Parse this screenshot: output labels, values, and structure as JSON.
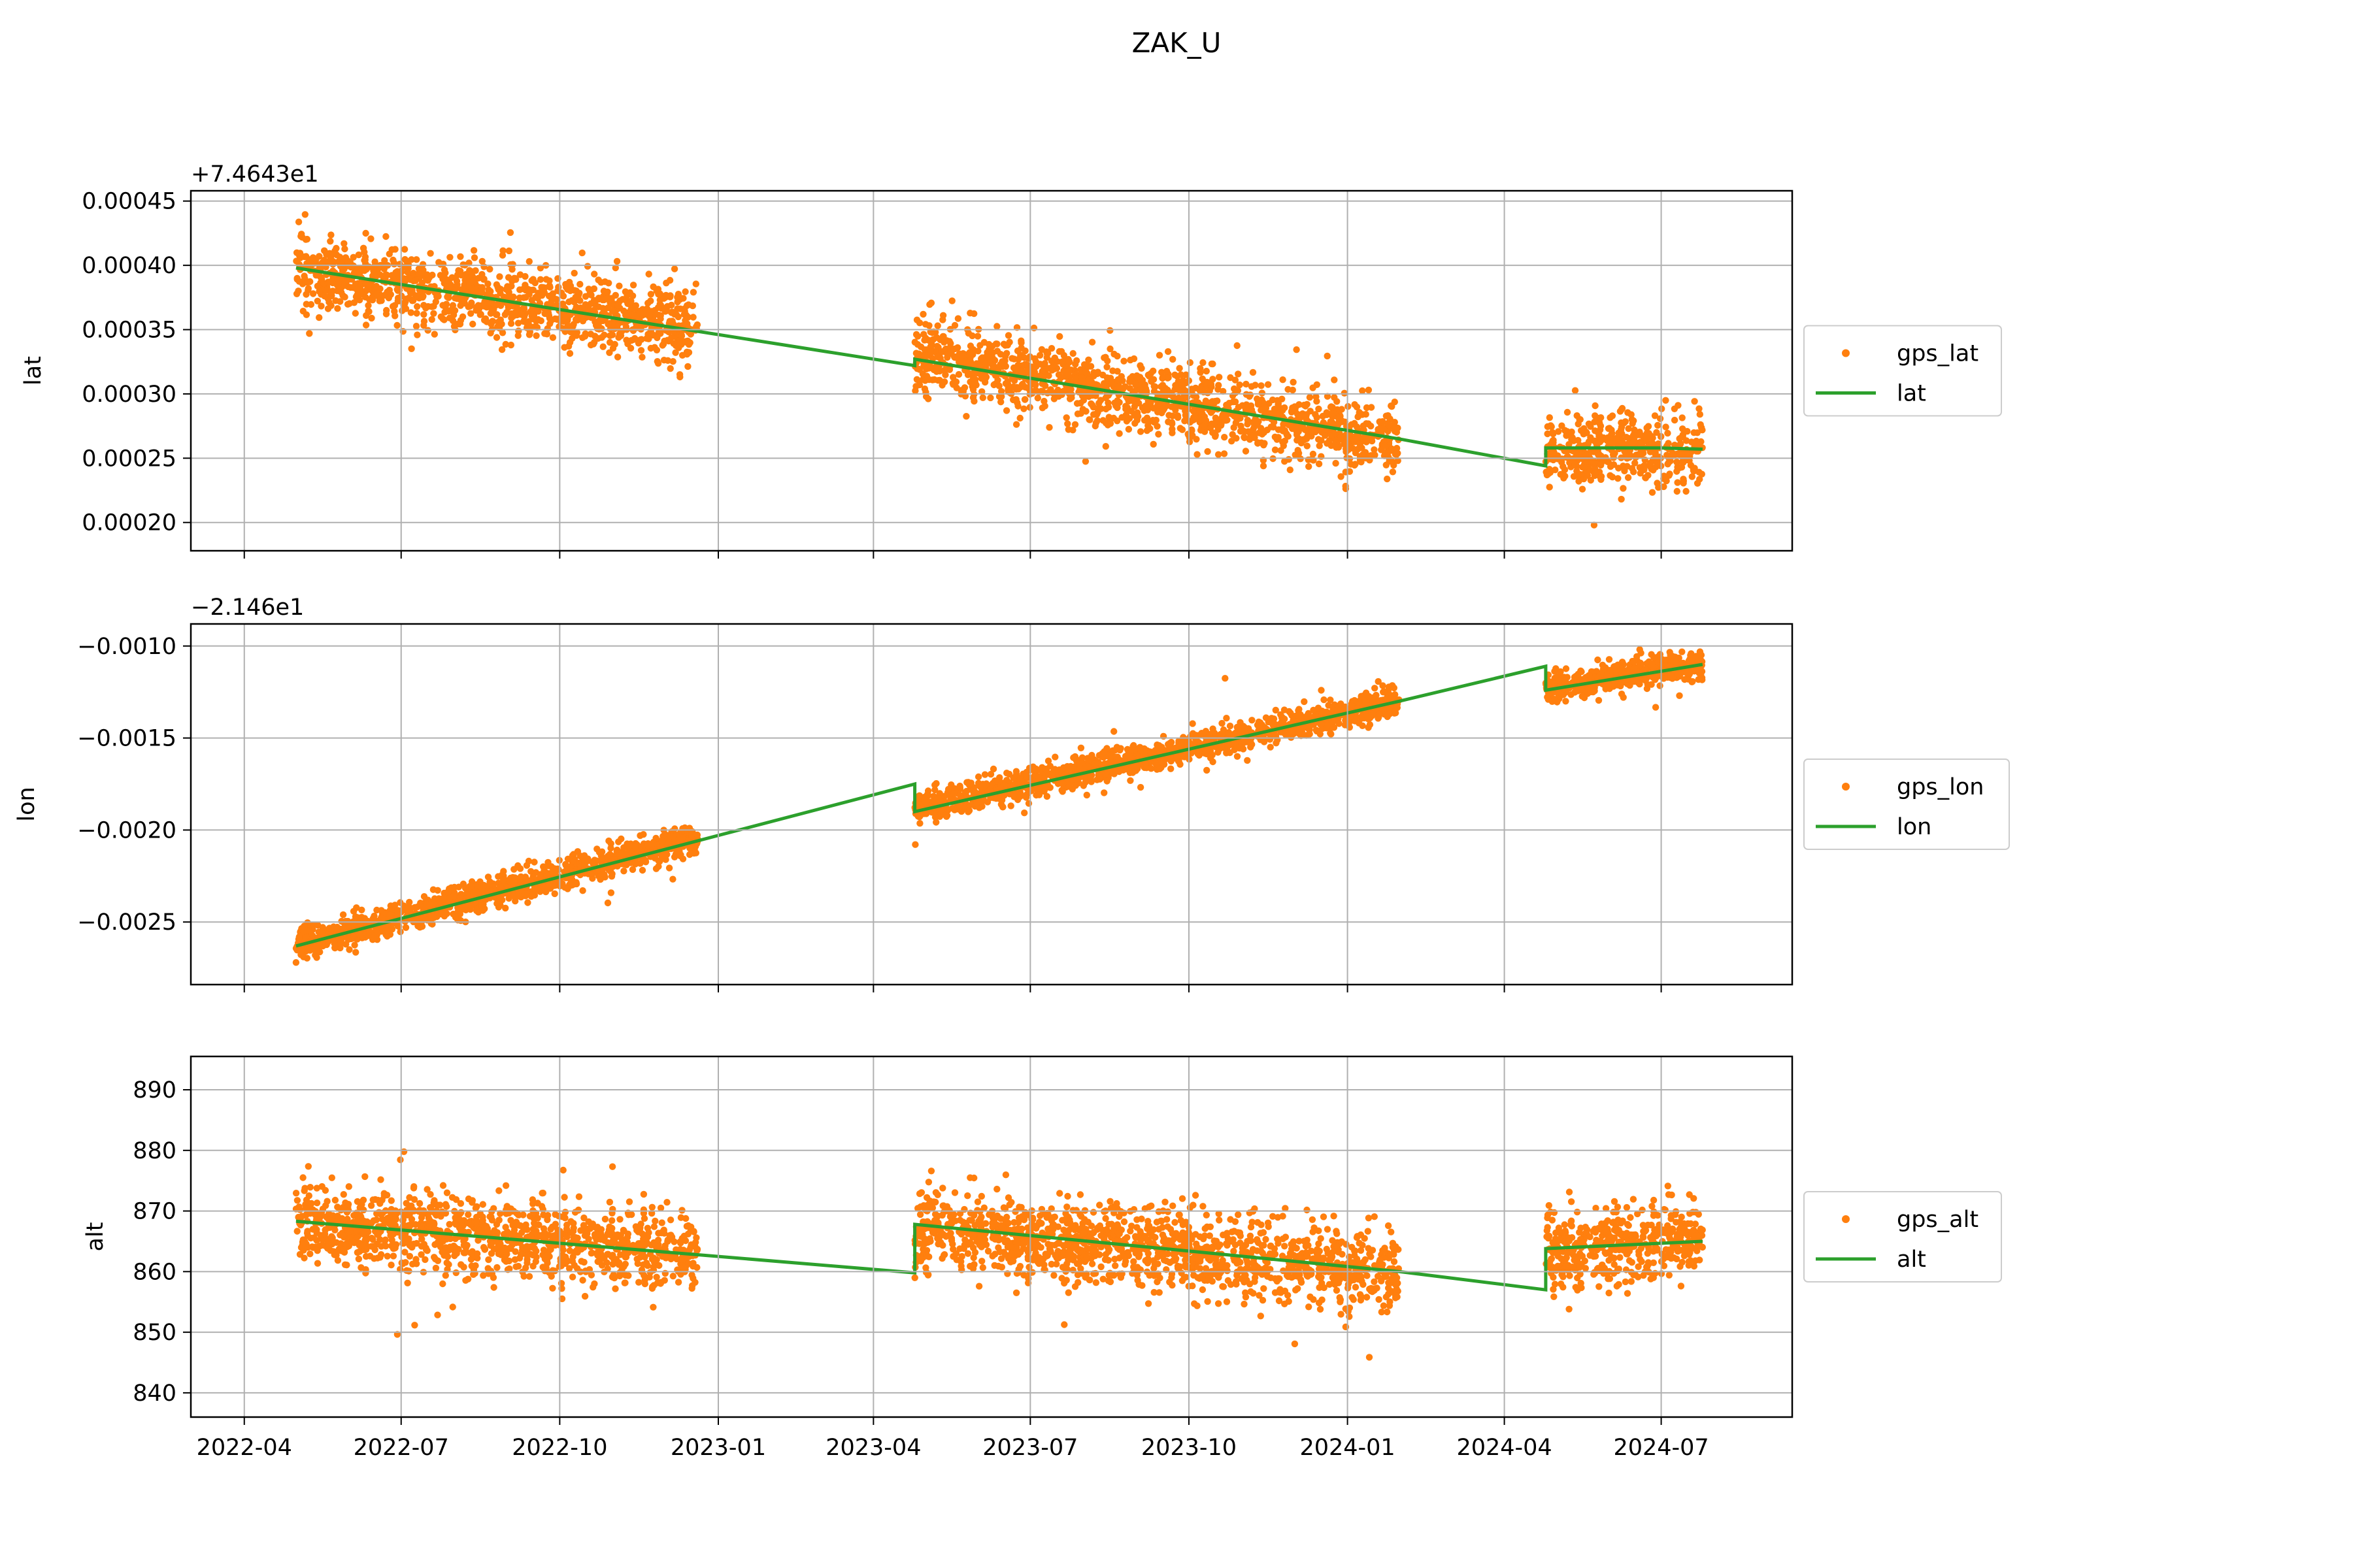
{
  "title": "ZAK_U",
  "colors": {
    "scatter": "#ff7f0e",
    "line": "#2ca02c",
    "grid": "#b0b0b0",
    "axes": "#000000"
  },
  "x_tick_labels": [
    "2022-04",
    "2022-07",
    "2022-10",
    "2023-01",
    "2023-04",
    "2023-07",
    "2023-10",
    "2024-01",
    "2024-04",
    "2024-07"
  ],
  "chart_data": [
    {
      "type": "scatter",
      "ylabel": "lat",
      "offset_label": "+7.4643e1",
      "grid": true,
      "legend_placement": "outside-right",
      "xlim": [
        "2022-03-01",
        "2024-09-15"
      ],
      "ylim": [
        0.000178,
        0.000458
      ],
      "yticks": [
        0.0002,
        0.00025,
        0.0003,
        0.00035,
        0.0004,
        0.00045
      ],
      "ytick_labels": [
        "0.00020",
        "0.00025",
        "0.00030",
        "0.00035",
        "0.00040",
        "0.00045"
      ],
      "scatter_series": {
        "name": "gps_lat",
        "noise": 1.4e-05,
        "segments": [
          {
            "x": [
              "2022-05-01",
              "2022-12-20"
            ],
            "y": [
              0.000395,
              0.000352
            ]
          },
          {
            "x": [
              "2023-04-25",
              "2024-01-31"
            ],
            "y": [
              0.00033,
              0.000262
            ]
          },
          {
            "x": [
              "2024-04-25",
              "2024-07-25"
            ],
            "y": [
              0.000258,
              0.000256
            ]
          }
        ]
      },
      "line_series": {
        "name": "lat",
        "x": [
          "2022-05-01",
          "2023-04-25",
          "2023-04-25",
          "2024-01-31",
          "2024-04-25",
          "2024-04-25",
          "2024-06-30",
          "2024-07-25"
        ],
        "y": [
          0.000398,
          0.000322,
          0.000327,
          0.000265,
          0.000244,
          0.000258,
          0.000258,
          0.000257
        ]
      }
    },
    {
      "type": "scatter",
      "ylabel": "lon",
      "offset_label": "−2.146e1",
      "grid": true,
      "legend_placement": "outside-right",
      "xlim": [
        "2022-03-01",
        "2024-09-15"
      ],
      "ylim": [
        -0.00284,
        -0.00088
      ],
      "yticks": [
        -0.0025,
        -0.002,
        -0.0015,
        -0.001
      ],
      "ytick_labels": [
        "−0.0025",
        "−0.0020",
        "−0.0015",
        "−0.0010"
      ],
      "scatter_series": {
        "name": "gps_lon",
        "noise": 4e-05,
        "segments": [
          {
            "x": [
              "2022-05-01",
              "2022-12-20"
            ],
            "y": [
              -0.00262,
              -0.00205
            ]
          },
          {
            "x": [
              "2023-04-25",
              "2024-01-31"
            ],
            "y": [
              -0.00188,
              -0.0013
            ]
          },
          {
            "x": [
              "2024-04-25",
              "2024-07-25"
            ],
            "y": [
              -0.00123,
              -0.0011
            ]
          }
        ]
      },
      "line_series": {
        "name": "lon",
        "x": [
          "2022-05-01",
          "2023-04-25",
          "2023-04-25",
          "2024-01-31",
          "2024-04-25",
          "2024-04-25",
          "2024-07-25"
        ],
        "y": [
          -0.00263,
          -0.00175,
          -0.0019,
          -0.0013,
          -0.00111,
          -0.00124,
          -0.0011
        ]
      }
    },
    {
      "type": "scatter",
      "ylabel": "alt",
      "offset_label": "",
      "grid": true,
      "legend_placement": "outside-right",
      "xlim": [
        "2022-03-01",
        "2024-09-15"
      ],
      "ylim": [
        836,
        895.5
      ],
      "yticks": [
        840,
        850,
        860,
        870,
        880,
        890
      ],
      "ytick_labels": [
        "840",
        "850",
        "860",
        "870",
        "880",
        "890"
      ],
      "scatter_series": {
        "name": "gps_alt",
        "noise": 3.2,
        "segments": [
          {
            "x": [
              "2022-05-01",
              "2022-12-20"
            ],
            "y": [
              868,
              863
            ]
          },
          {
            "x": [
              "2023-04-25",
              "2024-01-31"
            ],
            "y": [
              867,
              860
            ]
          },
          {
            "x": [
              "2024-04-25",
              "2024-07-25"
            ],
            "y": [
              864,
              865
            ]
          }
        ]
      },
      "line_series": {
        "name": "alt",
        "x": [
          "2022-05-01",
          "2023-04-25",
          "2023-04-25",
          "2024-01-31",
          "2024-04-25",
          "2024-04-25",
          "2024-07-25"
        ],
        "y": [
          868.3,
          859.8,
          867.8,
          860.0,
          857.0,
          863.8,
          865.0
        ]
      }
    }
  ]
}
